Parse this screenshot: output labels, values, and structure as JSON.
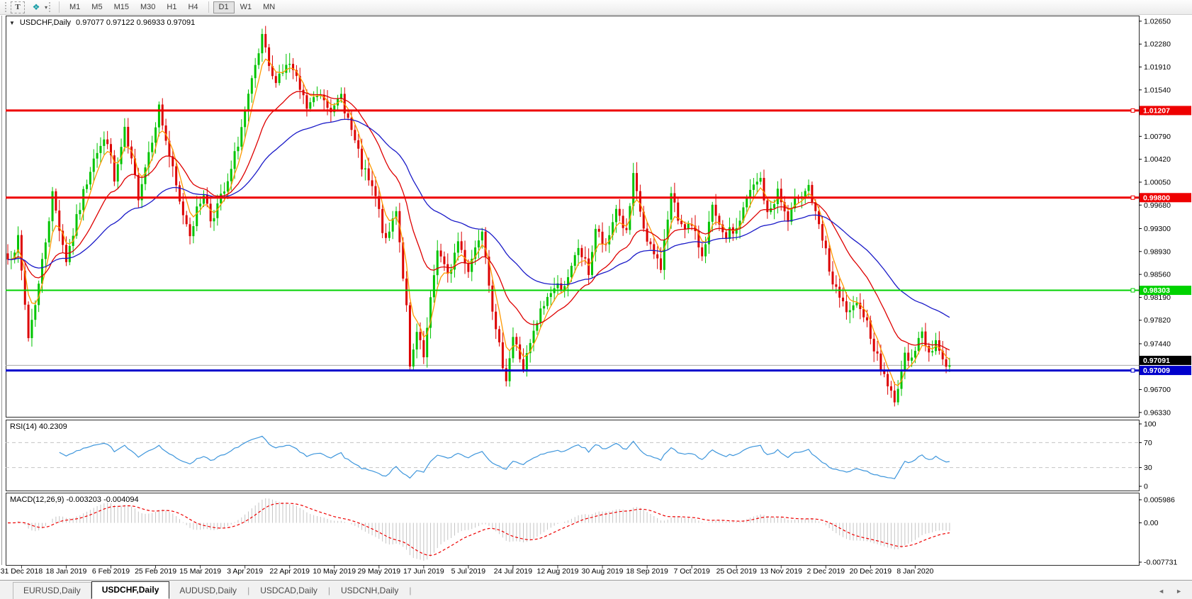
{
  "toolbar": {
    "text_tool_label": "T",
    "style_tool_icon": "style-palette-icon",
    "style_tool_glyph": "❖",
    "dropdown_caret": "▾",
    "timeframes": [
      "M1",
      "M5",
      "M15",
      "M30",
      "H1",
      "H4",
      "D1",
      "W1",
      "MN"
    ],
    "active_timeframe": "D1"
  },
  "chart_header": {
    "collapse_glyph": "▼",
    "symbol_label": "USDCHF,Daily",
    "ohlc": "0.97077 0.97122 0.96933 0.97091"
  },
  "tabs": {
    "items": [
      "EURUSD,Daily",
      "USDCHF,Daily",
      "AUDUSD,Daily",
      "USDCAD,Daily",
      "USDCNH,Daily"
    ],
    "active": "USDCHF,Daily",
    "scroll_left_glyph": "◄",
    "scroll_right_glyph": "►"
  },
  "chart_data": {
    "type": "candlestick",
    "title": "USDCHF,Daily",
    "ohlc_readout": {
      "open": "0.97077",
      "high": "0.97122",
      "low": "0.96933",
      "close": "0.97091"
    },
    "bar_count": 275,
    "x_labels": [
      "31 Dec 2018",
      "18 Jan 2019",
      "6 Feb 2019",
      "25 Feb 2019",
      "15 Mar 2019",
      "3 Apr 2019",
      "22 Apr 2019",
      "10 May 2019",
      "29 May 2019",
      "17 Jun 2019",
      "5 Jul 2019",
      "24 Jul 2019",
      "12 Aug 2019",
      "30 Aug 2019",
      "18 Sep 2019",
      "7 Oct 2019",
      "25 Oct 2019",
      "13 Nov 2019",
      "2 Dec 2019",
      "20 Dec 2019",
      "8 Jan 2020"
    ],
    "label_start_bar": 4,
    "label_step_bars": 13,
    "price_axis": {
      "min": 0.9626,
      "max": 1.0274,
      "tick_labels": [
        "1.02650",
        "1.02280",
        "1.01910",
        "1.01540",
        "1.01170",
        "1.00790",
        "1.00420",
        "1.00050",
        "0.99680",
        "0.99300",
        "0.98930",
        "0.98560",
        "0.98190",
        "0.97820",
        "0.97440",
        "0.96700",
        "0.96330"
      ]
    },
    "close_keypoints": [
      [
        0,
        0.988
      ],
      [
        3,
        0.991
      ],
      [
        6,
        0.9755
      ],
      [
        9,
        0.984
      ],
      [
        13,
        0.9985
      ],
      [
        17,
        0.988
      ],
      [
        25,
        1.005
      ],
      [
        29,
        1.0075
      ],
      [
        31,
        1.0005
      ],
      [
        34,
        1.0085
      ],
      [
        38,
        0.9985
      ],
      [
        44,
        1.0125
      ],
      [
        50,
        0.997
      ],
      [
        53,
        0.9925
      ],
      [
        57,
        0.999
      ],
      [
        59,
        0.9945
      ],
      [
        64,
        1.0
      ],
      [
        70,
        1.014
      ],
      [
        74,
        1.0235
      ],
      [
        77,
        1.017
      ],
      [
        82,
        1.0195
      ],
      [
        87,
        1.0125
      ],
      [
        91,
        1.015
      ],
      [
        95,
        1.012
      ],
      [
        97,
        1.0145
      ],
      [
        103,
        1.003
      ],
      [
        107,
        0.998
      ],
      [
        110,
        0.9905
      ],
      [
        113,
        0.9965
      ],
      [
        116,
        0.98
      ],
      [
        117,
        0.97
      ],
      [
        119,
        0.976
      ],
      [
        121,
        0.972
      ],
      [
        125,
        0.99
      ],
      [
        128,
        0.985
      ],
      [
        131,
        0.991
      ],
      [
        134,
        0.9865
      ],
      [
        138,
        0.9935
      ],
      [
        142,
        0.976
      ],
      [
        145,
        0.969
      ],
      [
        147,
        0.9755
      ],
      [
        150,
        0.9705
      ],
      [
        155,
        0.9795
      ],
      [
        158,
        0.983
      ],
      [
        163,
        0.9845
      ],
      [
        166,
        0.99
      ],
      [
        169,
        0.986
      ],
      [
        171,
        0.993
      ],
      [
        174,
        0.9895
      ],
      [
        177,
        0.9965
      ],
      [
        180,
        0.992
      ],
      [
        182,
        1.001
      ],
      [
        186,
        0.9905
      ],
      [
        190,
        0.987
      ],
      [
        193,
        0.9985
      ],
      [
        195,
        0.9945
      ],
      [
        199,
        0.993
      ],
      [
        202,
        0.989
      ],
      [
        205,
        0.996
      ],
      [
        208,
        0.9915
      ],
      [
        212,
        0.993
      ],
      [
        216,
        0.999
      ],
      [
        219,
        1.001
      ],
      [
        221,
        0.995
      ],
      [
        224,
        0.999
      ],
      [
        227,
        0.994
      ],
      [
        230,
        0.9985
      ],
      [
        233,
        1.0
      ],
      [
        235,
        0.995
      ],
      [
        238,
        0.989
      ],
      [
        240,
        0.984
      ],
      [
        242,
        0.9815
      ],
      [
        245,
        0.979
      ],
      [
        248,
        0.981
      ],
      [
        251,
        0.976
      ],
      [
        253,
        0.972
      ],
      [
        256,
        0.968
      ],
      [
        258,
        0.9645
      ],
      [
        259,
        0.968
      ],
      [
        261,
        0.972
      ],
      [
        264,
        0.9735
      ],
      [
        266,
        0.976
      ],
      [
        268,
        0.973
      ],
      [
        270,
        0.975
      ],
      [
        272,
        0.9718
      ],
      [
        274,
        0.97091
      ]
    ],
    "candles": {
      "up_color": "#00C400",
      "down_color": "#DC0000"
    },
    "moving_averages": [
      {
        "name": "fast",
        "period": 5,
        "color": "#FF9900"
      },
      {
        "name": "medium",
        "period": 20,
        "color": "#DE0000"
      },
      {
        "name": "slow",
        "period": 50,
        "color": "#1A1AC8"
      }
    ],
    "horizontal_lines": [
      {
        "price": 1.01207,
        "label": "1.01207",
        "color": "#EE0000",
        "width": 3
      },
      {
        "price": 0.998,
        "label": "0.99800",
        "color": "#EE0000",
        "width": 3
      },
      {
        "price": 0.98303,
        "label": "0.98303",
        "color": "#00D200",
        "width": 2
      },
      {
        "price": 0.97009,
        "label": "0.97009",
        "color": "#0000CC",
        "width": 3
      }
    ],
    "current_price_line": {
      "price": 0.97091,
      "label": "0.97091",
      "line_color": "#A8A8A8",
      "label_bg": "#000000"
    },
    "rsi_pane": {
      "label": "RSI(14) 40.2309",
      "period": 14,
      "current_value": "40.2309",
      "line_color": "#3E96DC",
      "levels": [
        70,
        30
      ],
      "axis_labels": [
        "100",
        "70",
        "30",
        "0"
      ],
      "range": [
        0,
        100
      ]
    },
    "macd_pane": {
      "label": "MACD(12,26,9) -0.003203 -0.004094",
      "params": "12,26,9",
      "values": [
        "-0.003203",
        "-0.004094"
      ],
      "axis_top": "0.005986",
      "axis_zero": "0.00",
      "axis_bottom": "-0.007731",
      "hist_color": "#C4C4C4",
      "signal_color": "#EE0000"
    }
  }
}
